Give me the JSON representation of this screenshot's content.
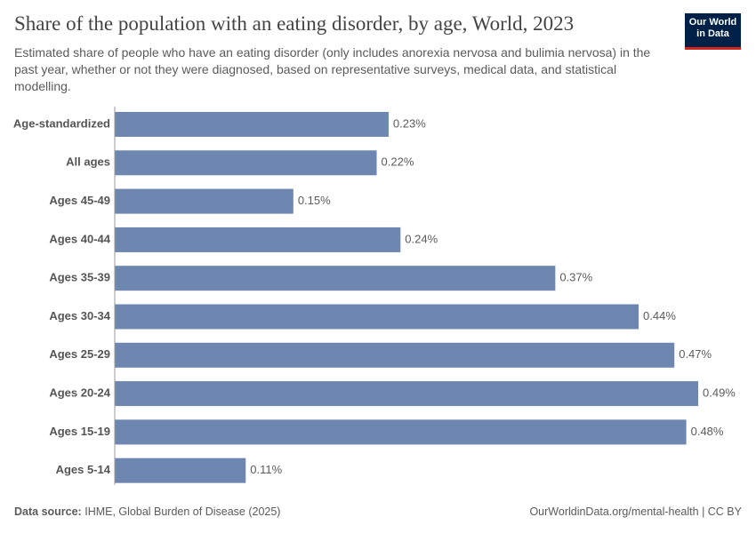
{
  "chart_data": {
    "type": "bar",
    "title": "Share of the population with an eating disorder, by age, World, 2023",
    "subtitle": "Estimated share of people who have an eating disorder (only includes anorexia nervosa and bulimia nervosa) in the past year, whether or not they were diagnosed, based on representative surveys, medical data, and statistical modelling.",
    "logo": [
      "Our World",
      "in Data"
    ],
    "categories": [
      "Age-standardized",
      "All ages",
      "Ages 45-49",
      "Ages 40-44",
      "Ages 35-39",
      "Ages 30-34",
      "Ages 25-29",
      "Ages 20-24",
      "Ages 15-19",
      "Ages 5-14"
    ],
    "values": [
      0.23,
      0.22,
      0.15,
      0.24,
      0.37,
      0.44,
      0.47,
      0.49,
      0.48,
      0.11
    ],
    "value_labels": [
      "0.23%",
      "0.22%",
      "0.15%",
      "0.24%",
      "0.37%",
      "0.44%",
      "0.47%",
      "0.49%",
      "0.48%",
      "0.11%"
    ],
    "color": "#6d87b0",
    "source_label": "Data source:",
    "source": "IHME, Global Burden of Disease (2025)",
    "url": "OurWorldinData.org/mental-health | CC BY"
  }
}
